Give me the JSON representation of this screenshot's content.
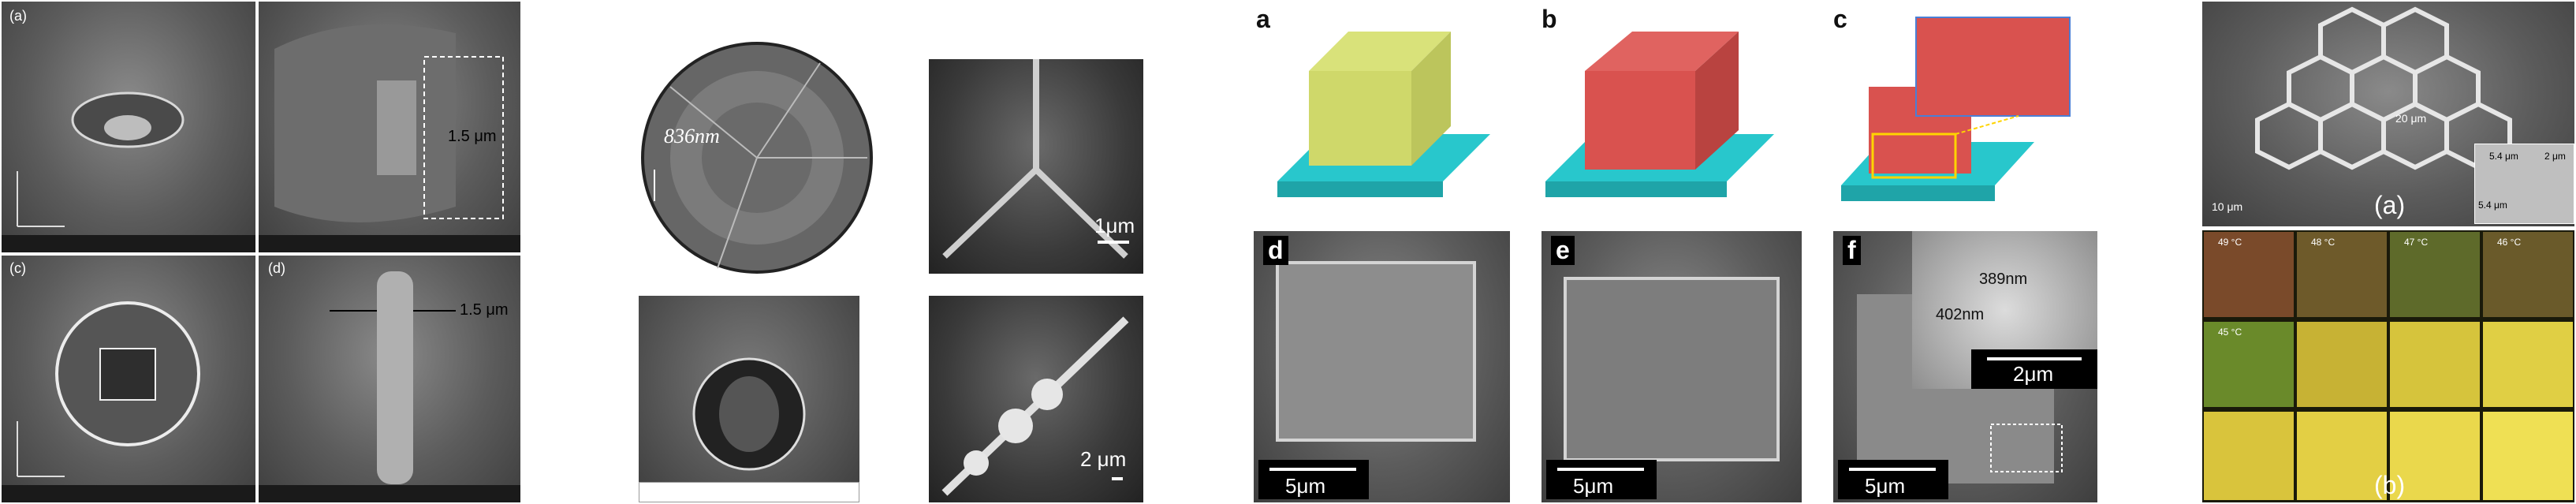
{
  "group1": {
    "labels": [
      "(a)",
      "(b)",
      "(c)",
      "(d)"
    ],
    "scale_c": "1.5 μm",
    "scale_d": "1.5 μm"
  },
  "group2": {
    "disk_label": "836nm",
    "scale_tr": "1μm",
    "scale_br": "2 μm"
  },
  "group3": {
    "labels": [
      "a",
      "b",
      "c",
      "d",
      "e",
      "f"
    ],
    "scale_d": "5μm",
    "scale_e": "5μm",
    "scale_f": "5μm",
    "inset_scale": "2μm",
    "dim1": "389nm",
    "dim2": "402nm",
    "colors": {
      "base": "#28c7cc",
      "lattice_a": "#d9e27a",
      "lattice_b": "#d9524f",
      "highlight": "#ffd400"
    }
  },
  "group4": {
    "label_a": "(a)",
    "scale_a": "10 μm",
    "honeycomb_note": "20 μm",
    "inset_vals": [
      "5.4 μm",
      "5.4 μm",
      "2 μm"
    ],
    "temps": [
      "49 °C",
      "48 °C",
      "47 °C",
      "46 °C",
      "45 °C"
    ],
    "label_b": "(b)"
  }
}
